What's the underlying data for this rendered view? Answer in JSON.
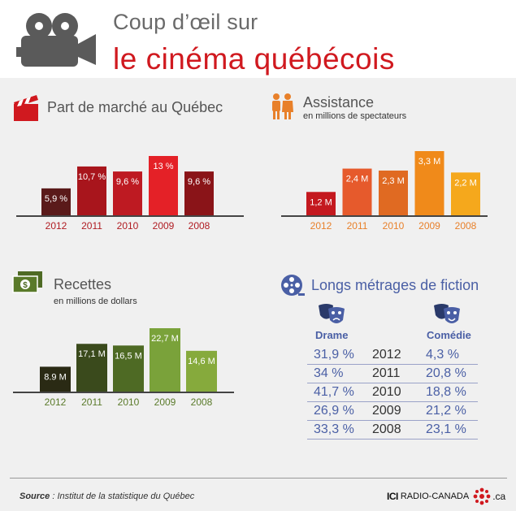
{
  "header": {
    "title_line1": "Coup d’œil sur",
    "title_line2": "le cinéma québécois"
  },
  "colors": {
    "title_red": "#d0191f",
    "title_grey": "#6a6a6a",
    "panel_background": "#f0f0f0",
    "films_blue": "#4a5fa5"
  },
  "chart_data": [
    {
      "type": "bar",
      "title": "Part de marché au Québec",
      "subtitle": "",
      "icon": "clapperboard-icon",
      "categories": [
        "2012",
        "2011",
        "2010",
        "2009",
        "2008"
      ],
      "values": [
        5.9,
        10.7,
        9.6,
        13,
        9.6
      ],
      "value_labels": [
        "5,9 %",
        "10,7 %",
        "9,6 %",
        "13 %",
        "9,6 %"
      ],
      "colors": [
        "#5a1a1a",
        "#a8151c",
        "#be1a22",
        "#e42127",
        "#8a1418"
      ],
      "tick_color": "#b01c22",
      "ylim": [
        0,
        13
      ]
    },
    {
      "type": "bar",
      "title": "Assistance",
      "subtitle": "en millions de spectateurs",
      "icon": "people-icon",
      "categories": [
        "2012",
        "2011",
        "2010",
        "2009",
        "2008"
      ],
      "values": [
        1.2,
        2.4,
        2.3,
        3.3,
        2.2
      ],
      "value_labels": [
        "1,2 M",
        "2,4 M",
        "2,3 M",
        "3,3 M",
        "2,2 M"
      ],
      "colors": [
        "#c4191f",
        "#e65a2c",
        "#e06a22",
        "#f08a1a",
        "#f5a81c"
      ],
      "tick_color": "#e8802a",
      "ylim": [
        0,
        3.3
      ]
    },
    {
      "type": "bar",
      "title": "Recettes",
      "subtitle": "en millions de dollars",
      "icon": "money-icon",
      "categories": [
        "2012",
        "2011",
        "2010",
        "2009",
        "2008"
      ],
      "values": [
        8.9,
        17.1,
        16.5,
        22.7,
        14.6
      ],
      "value_labels": [
        "8.9 M",
        "17,1 M",
        "16,5 M",
        "22,7 M",
        "14,6 M"
      ],
      "colors": [
        "#2a2a14",
        "#3a4a1c",
        "#4e6a24",
        "#7aa23a",
        "#86aa3c"
      ],
      "tick_color": "#5a7a2a",
      "ylim": [
        0,
        22.7
      ]
    },
    {
      "type": "table",
      "title": "Longs métrages de fiction",
      "icon": "film-reel-icon",
      "columns": [
        "Drame",
        "",
        "Comédie"
      ],
      "rows": [
        [
          "31,9 %",
          "2012",
          "4,3 %"
        ],
        [
          "34 %",
          "2011",
          "20,8 %"
        ],
        [
          "41,7 %",
          "2010",
          "18,8 %"
        ],
        [
          "26,9 %",
          "2009",
          "21,2 %"
        ],
        [
          "33,3 %",
          "2008",
          "23,1 %"
        ]
      ]
    }
  ],
  "footer": {
    "source_label": "Source",
    "source_text": " : Institut de la statistique du Québec",
    "brand_prefix": "ICI",
    "brand_name": "RADIO-CANADA",
    "brand_suffix": ".ca"
  }
}
